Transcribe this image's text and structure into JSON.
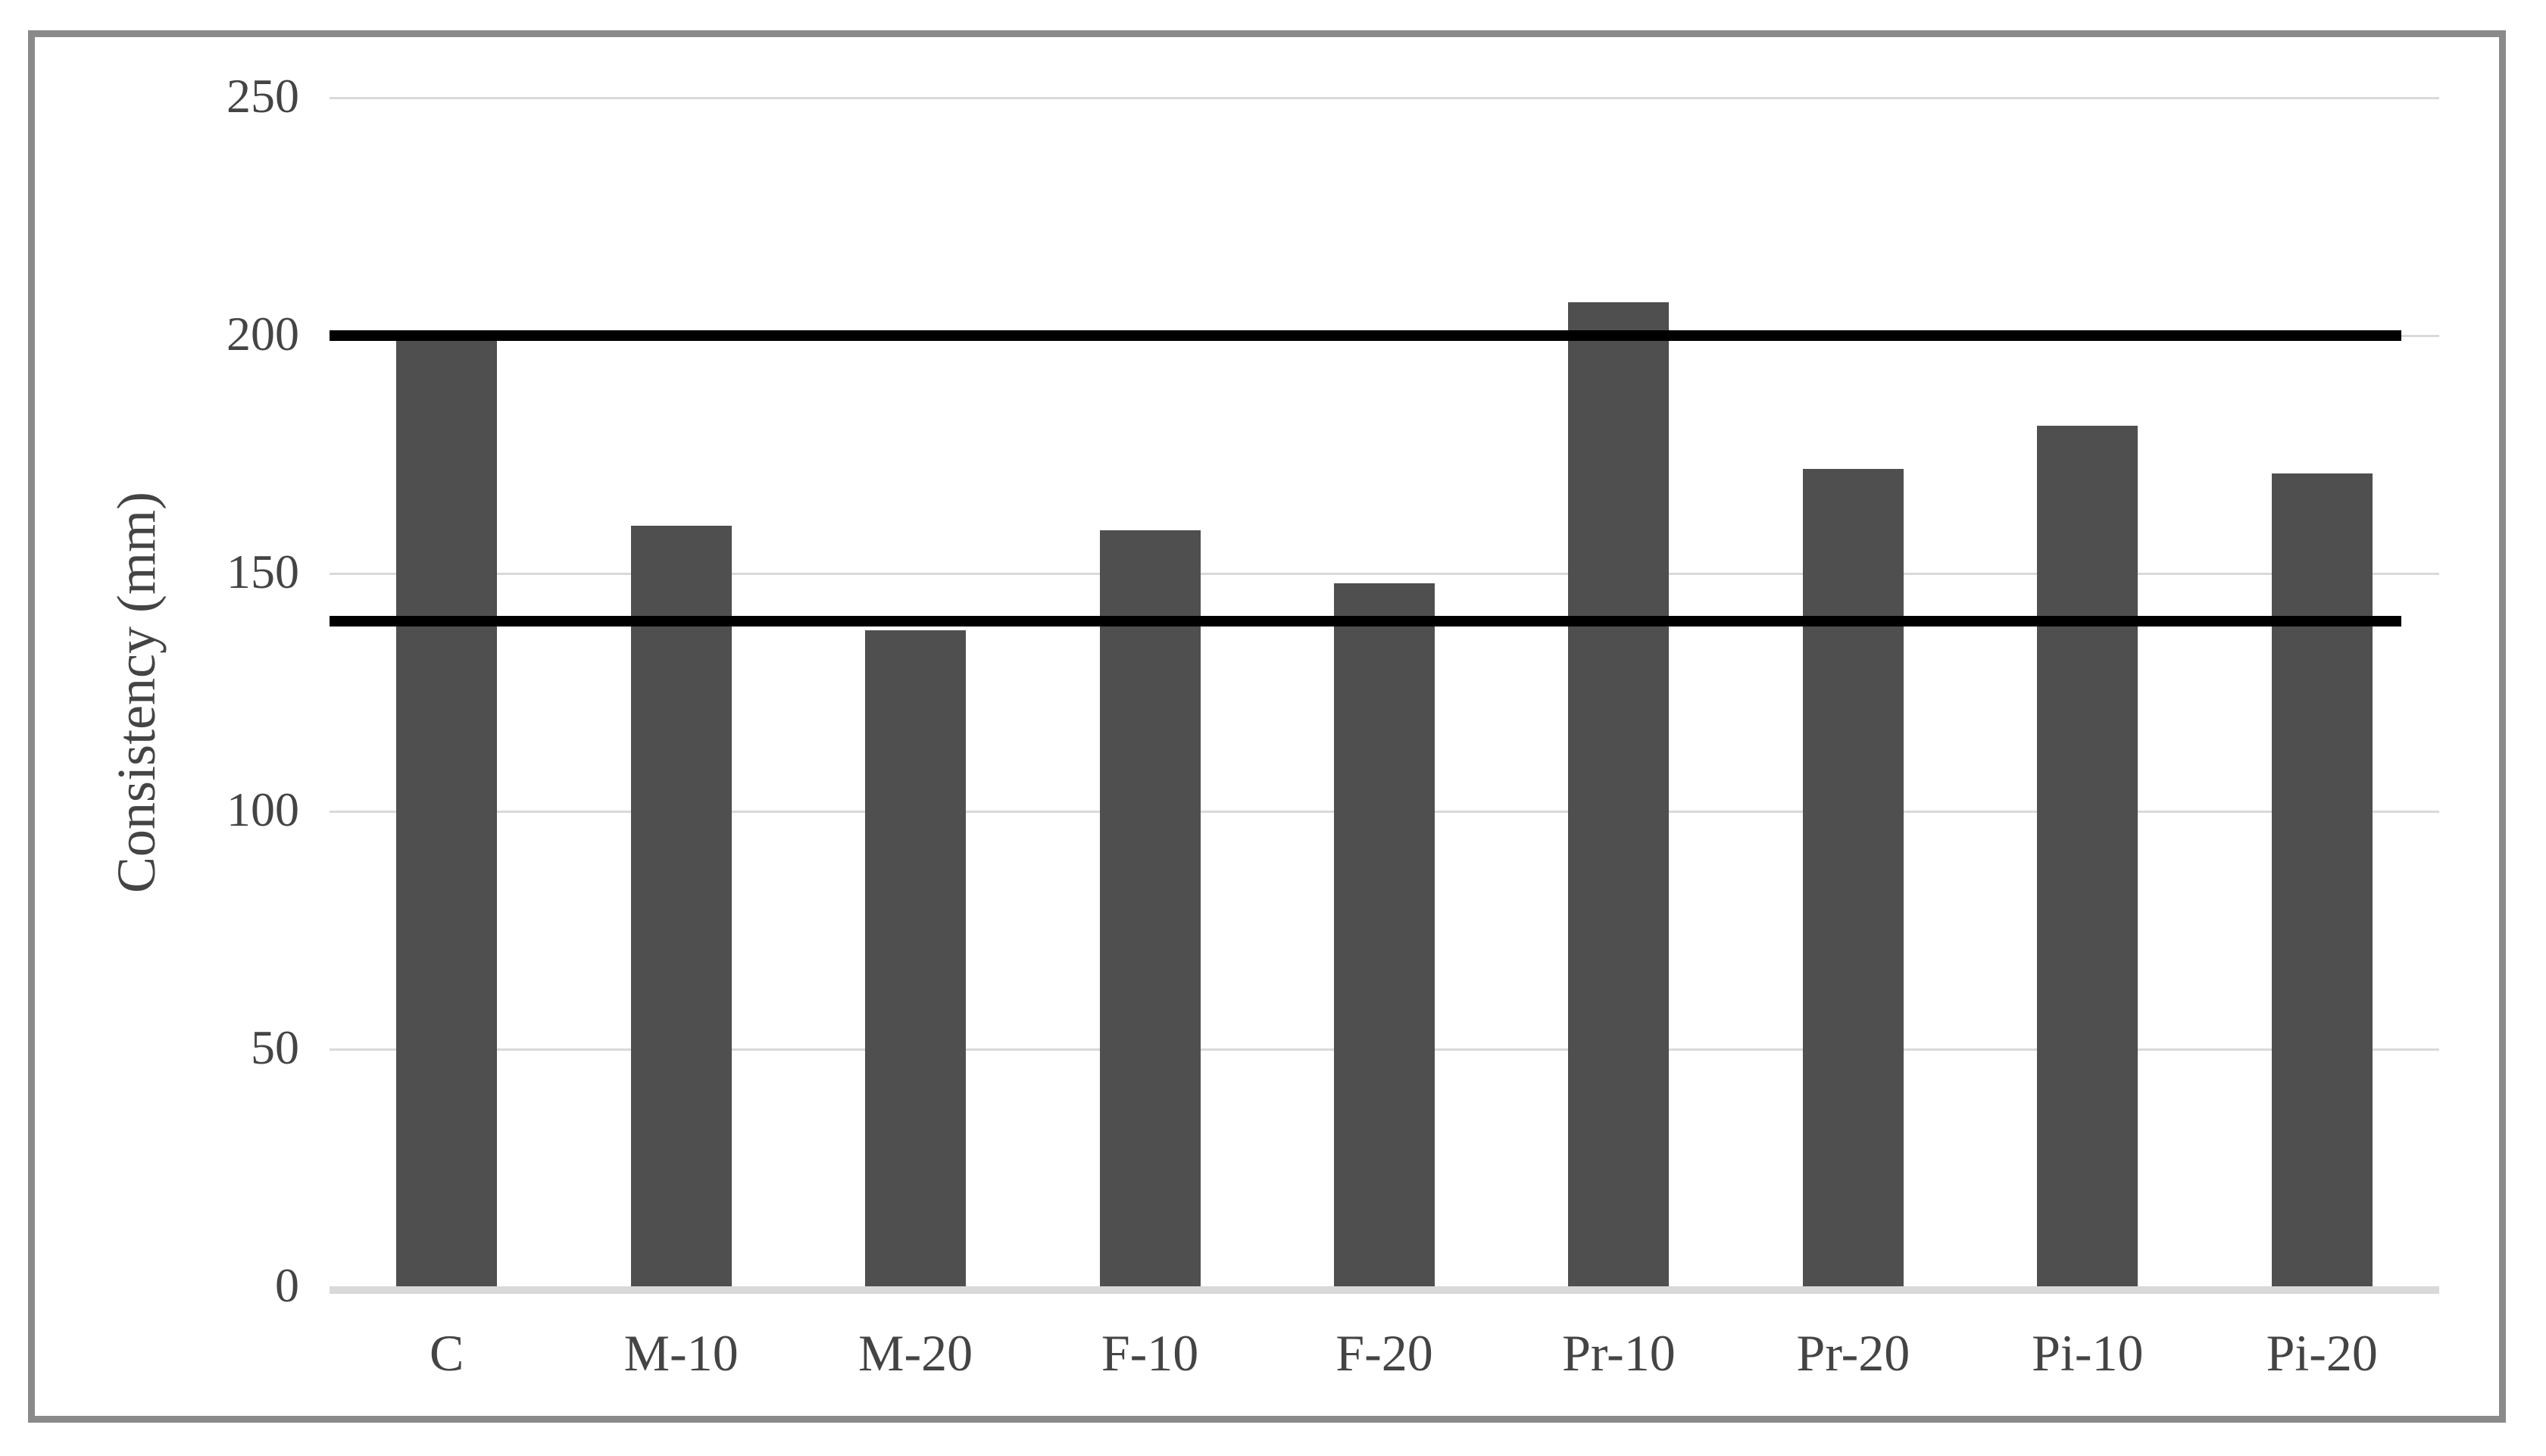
{
  "chart_data": {
    "type": "bar",
    "title": "",
    "xlabel": "",
    "ylabel": "Consistency (mm)",
    "categories": [
      "C",
      "M-10",
      "M-20",
      "F-10",
      "F-20",
      "Pr-10",
      "Pr-20",
      "Pi-10",
      "Pi-20"
    ],
    "values": [
      199,
      160,
      138,
      159,
      148,
      207,
      172,
      181,
      171
    ],
    "ylim": [
      0,
      250
    ],
    "yticks": [
      0,
      50,
      100,
      150,
      200,
      250
    ],
    "reference_lines": [
      {
        "value": 140
      },
      {
        "value": 200
      }
    ],
    "grid": "horizontal",
    "legend_position": "none",
    "colors": {
      "bar": "#4f4f4f",
      "gridline": "#d9d9d9",
      "axis_line": "#d9d9d9",
      "reference_line": "#000000",
      "text": "#444444",
      "frame_border": "#8a8a8a",
      "background": "#ffffff"
    }
  }
}
